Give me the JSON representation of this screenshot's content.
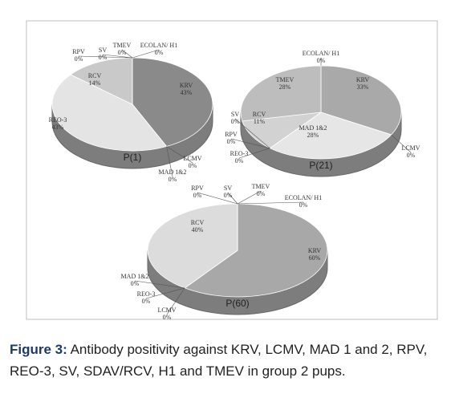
{
  "chart_data": [
    {
      "type": "pie",
      "title": "P(1)",
      "categories": [
        "KRV",
        "LCMV",
        "MAD 1&2",
        "REO-3",
        "RCV",
        "RPV",
        "SV",
        "TMEV",
        "ECOLAN/ H1"
      ],
      "values": [
        43,
        0,
        0,
        43,
        14,
        0,
        0,
        0,
        0
      ],
      "value_labels": [
        "43%",
        "0%",
        "0%",
        "43%",
        "14%",
        "0%",
        "0%",
        "0%",
        "0%"
      ],
      "colors": [
        "#8a8a8a",
        "#8a8a8a",
        "#8a8a8a",
        "#e4e4e4",
        "#c9c9c9",
        "#c9c9c9",
        "#c9c9c9",
        "#c9c9c9",
        "#c9c9c9"
      ]
    },
    {
      "type": "pie",
      "title": "P(21)",
      "categories": [
        "ECOLAN/ H1",
        "KRV",
        "LCMV",
        "MAD 1&2",
        "REO-3",
        "RPV",
        "SV",
        "RCV",
        "TMEV"
      ],
      "values": [
        0,
        33,
        0,
        28,
        0,
        0,
        0,
        11,
        28
      ],
      "value_labels": [
        "0%",
        "33%",
        "0%",
        "28%",
        "0%",
        "0%",
        "0%",
        "11%",
        "28%"
      ],
      "colors": [
        "#bdbdbd",
        "#a9a9a9",
        "#a9a9a9",
        "#e6e6e6",
        "#e6e6e6",
        "#e6e6e6",
        "#e6e6e6",
        "#d2d2d2",
        "#bdbdbd"
      ]
    },
    {
      "type": "pie",
      "title": "P(60)",
      "categories": [
        "TMEV",
        "ECOLAN/ H1",
        "KRV",
        "MAD 1&2",
        "REO-3",
        "LCMV",
        "RCV",
        "RPV",
        "SV"
      ],
      "values": [
        0,
        0,
        60,
        0,
        0,
        0,
        40,
        0,
        0
      ],
      "value_labels": [
        "0%",
        "0%",
        "60%",
        "0%",
        "0%",
        "0%",
        "40%",
        "0%",
        "0%"
      ],
      "colors": [
        "#a8a8a8",
        "#a8a8a8",
        "#a8a8a8",
        "#a8a8a8",
        "#a8a8a8",
        "#a8a8a8",
        "#dcdcdc",
        "#dcdcdc",
        "#dcdcdc"
      ]
    }
  ],
  "caption": {
    "label": "Figure 3:",
    "text": "Antibody positivity against KRV, LCMV, MAD 1 and 2, RPV, REO-3, SV, SDAV/RCV, H1 and TMEV in group 2 pups."
  }
}
